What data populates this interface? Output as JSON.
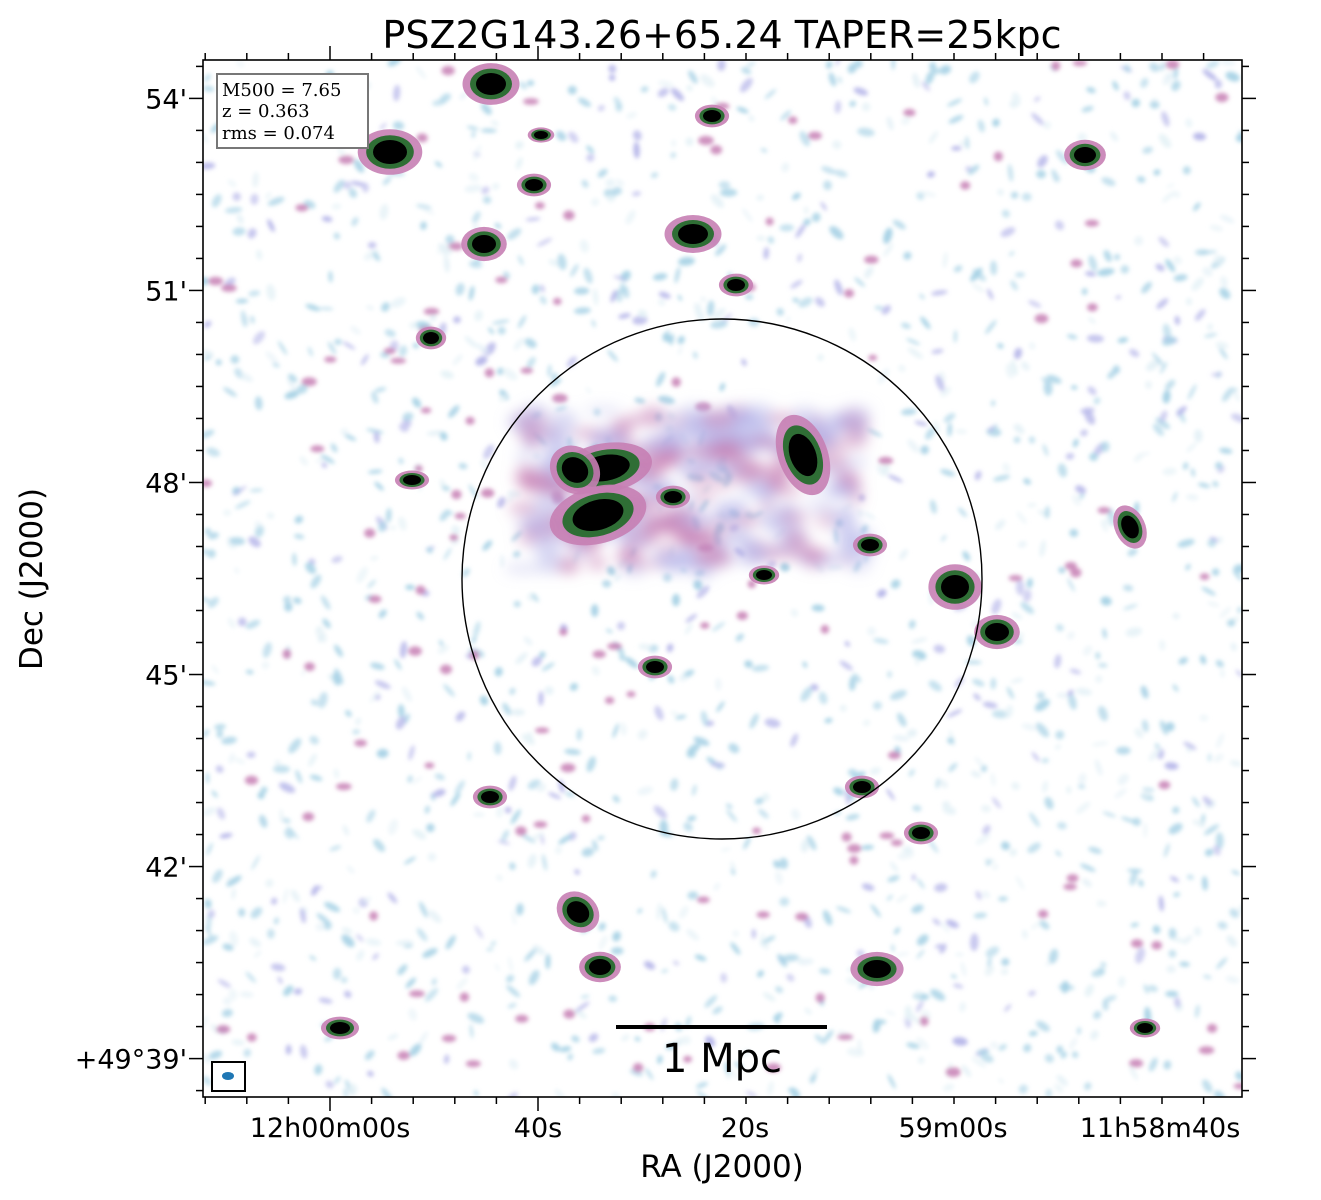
{
  "chart_data": {
    "type": "heatmap",
    "title": "PSZ2G143.26+65.24 TAPER=25kpc",
    "xlabel": "RA (J2000)",
    "ylabel": "Dec (J2000)",
    "x_ticks": [
      "12h00m00s",
      "40s",
      "20s",
      "59m00s",
      "11h58m40s"
    ],
    "y_ticks": [
      "54'",
      "51'",
      "48'",
      "45'",
      "42'",
      "+49°39'"
    ],
    "y_tick_values_arcmin": [
      54,
      51,
      48,
      45,
      42,
      39
    ],
    "ylim_arcmin": [
      38.4,
      54.6
    ],
    "info": {
      "line1": "M500 = 7.65",
      "line2": "z = 0.363",
      "line3": "rms = 0.074"
    },
    "scale_bar_label": "1 Mpc",
    "colormap": [
      "#e6f2f7",
      "#a9d3e6",
      "#b8b8ea",
      "#c77fb4",
      "#2f6e35",
      "#000000"
    ],
    "grid": false,
    "beam_color": "#1f77b4"
  }
}
